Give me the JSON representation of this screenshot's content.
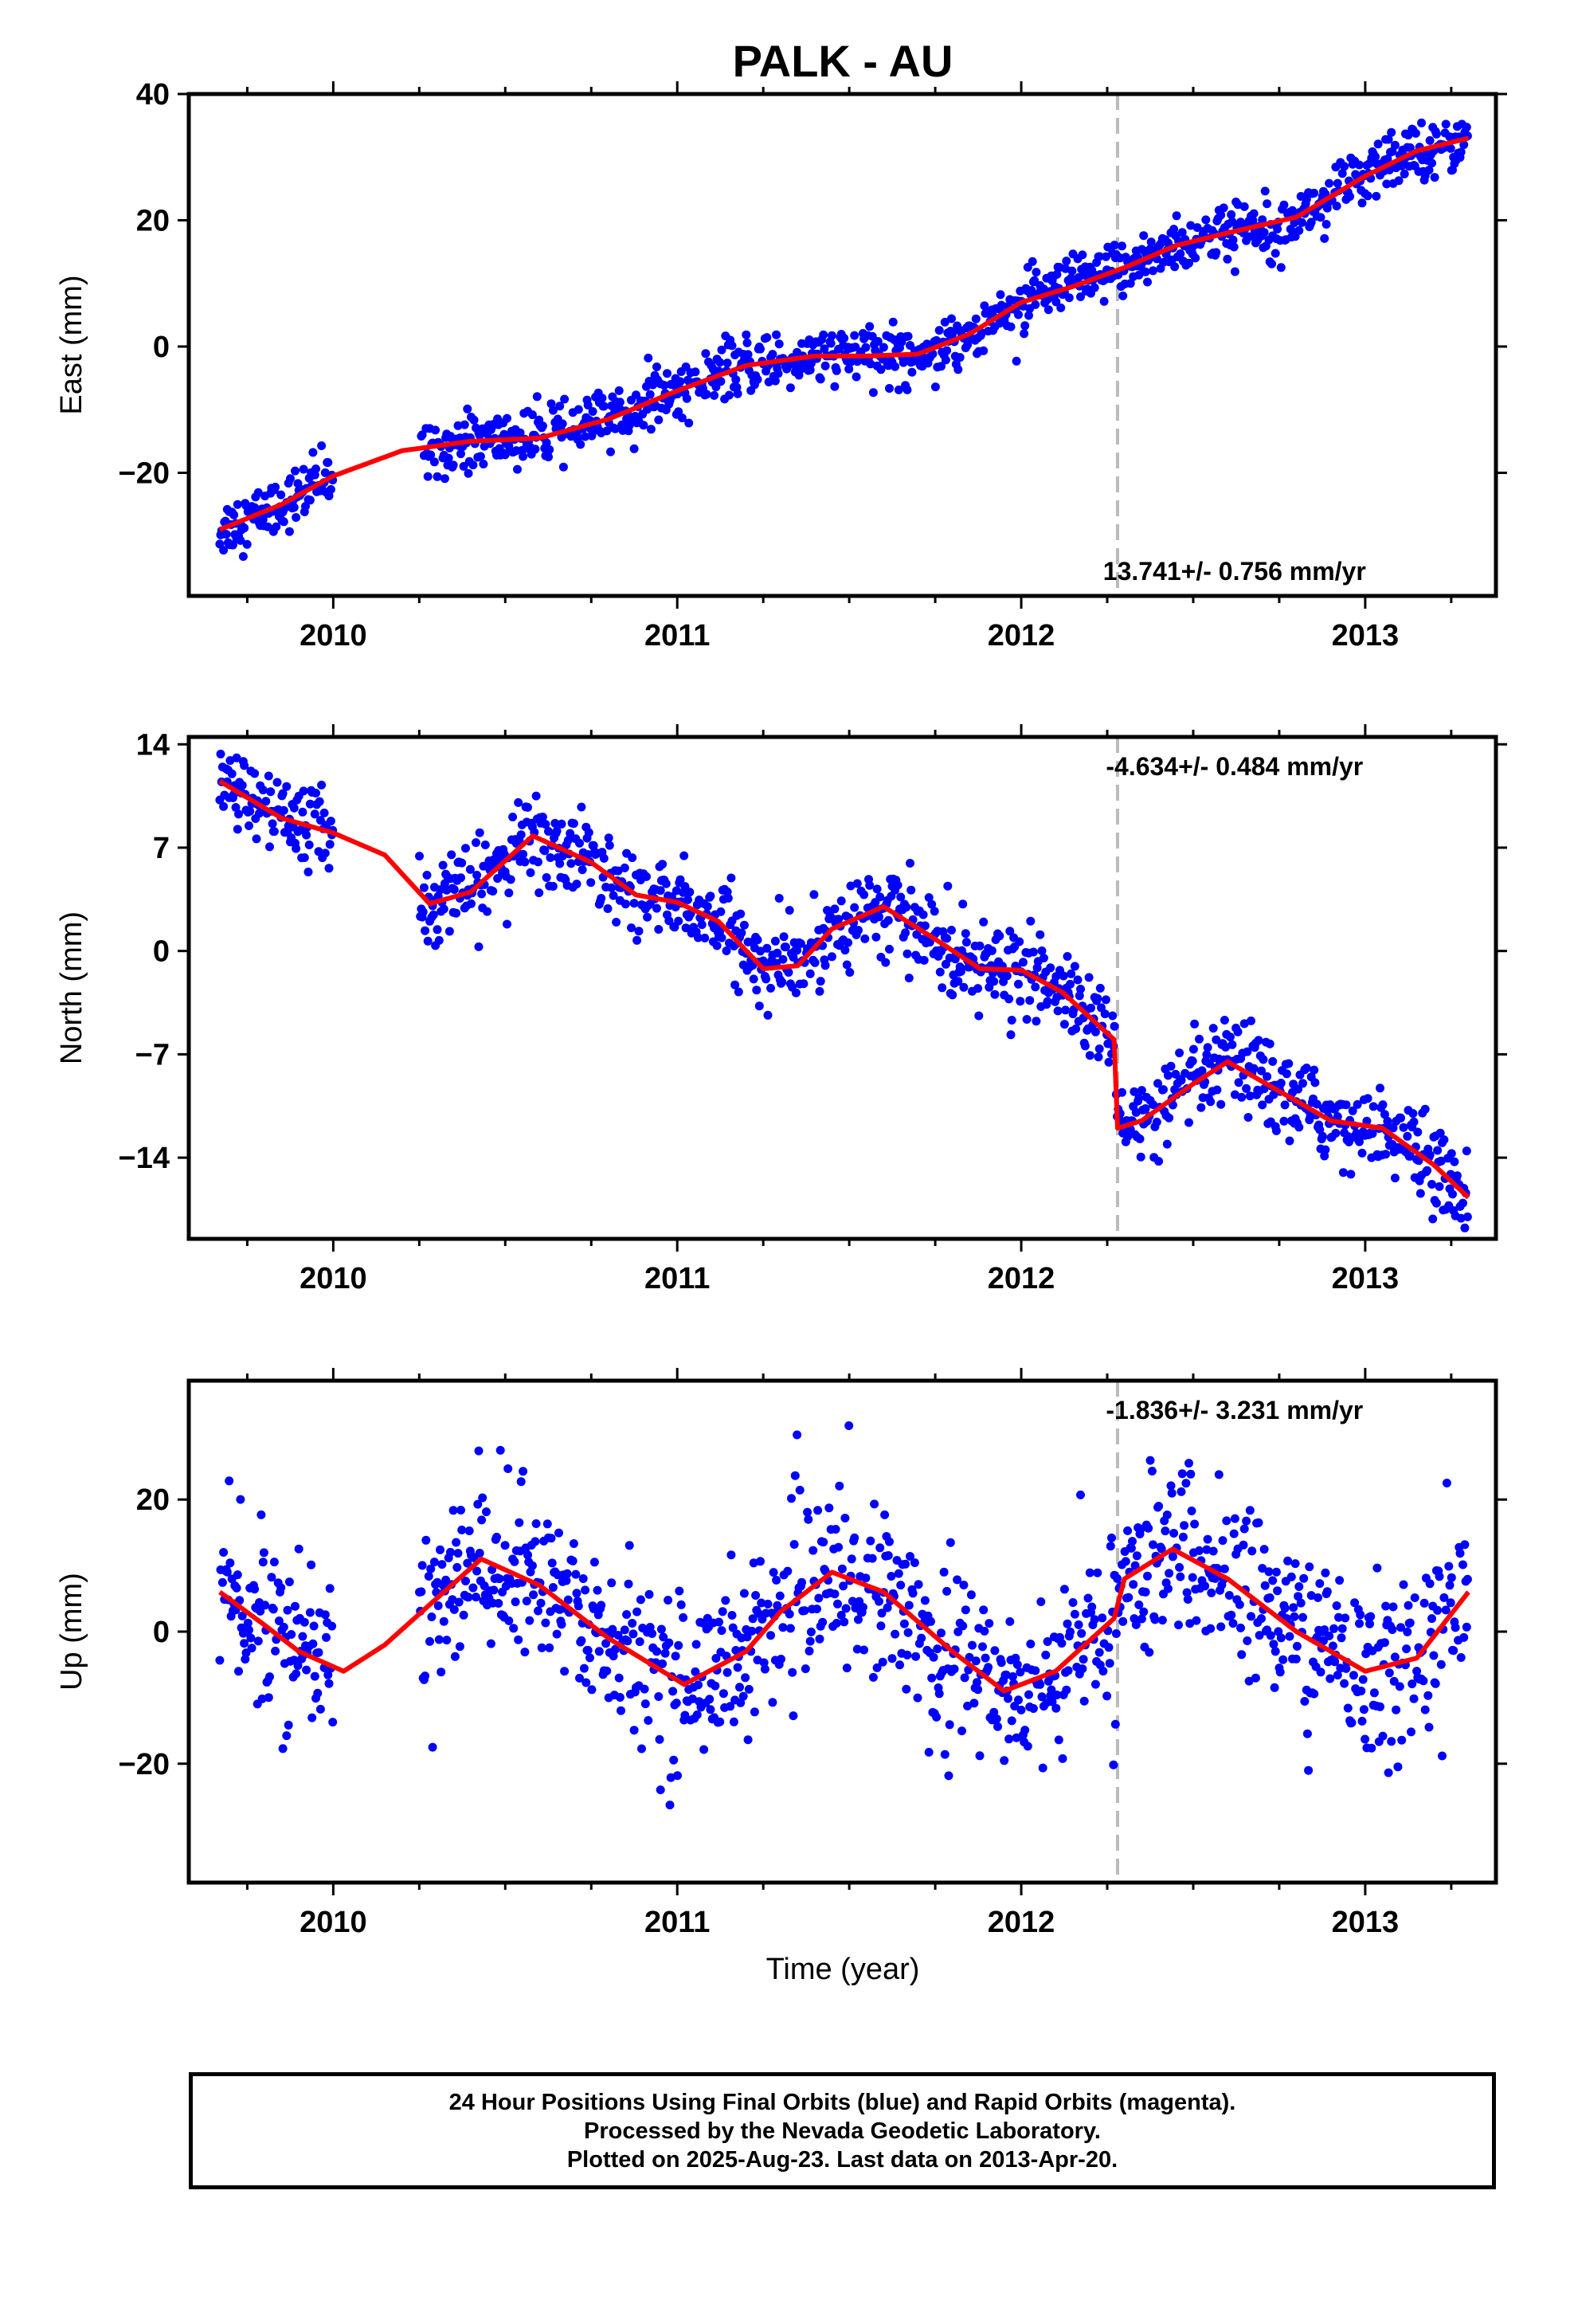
{
  "title": "PALK - AU",
  "xlabel": "Time (year)",
  "colors": {
    "final_orbits": "#0000ff",
    "fit": "#ff0000",
    "event_line": "#bbbbbb",
    "axes": "#000000"
  },
  "footer": {
    "line1": "24 Hour Positions Using Final Orbits (blue) and Rapid Orbits (magenta).",
    "line2": "Processed by the Nevada Geodetic Laboratory.",
    "line3": "Plotted on 2025-Aug-23. Last data on 2013-Apr-20."
  },
  "chart_data": [
    {
      "type": "scatter",
      "ylabel": "East (mm)",
      "rate_label": "13.741+/- 0.756 mm/yr",
      "rate_position": "bottom-right",
      "xlim": [
        2009.58,
        2013.38
      ],
      "ylim": [
        -39.5,
        40
      ],
      "xticks": [
        2010,
        2011,
        2012,
        2013
      ],
      "yticks": [
        -20,
        0,
        20,
        40
      ],
      "event_year": 2012.28,
      "data_span": [
        2009.67,
        2013.3
      ],
      "gap": [
        2010.0,
        2010.25
      ],
      "trend": [
        [
          2009.67,
          -29
        ],
        [
          2009.85,
          -25
        ],
        [
          2010.0,
          -20.5
        ],
        [
          2010.2,
          -16.5
        ],
        [
          2010.4,
          -15
        ],
        [
          2010.6,
          -14.5
        ],
        [
          2010.8,
          -11.5
        ],
        [
          2011.0,
          -7
        ],
        [
          2011.2,
          -3
        ],
        [
          2011.4,
          -1.5
        ],
        [
          2011.55,
          -1.5
        ],
        [
          2011.7,
          -1.2
        ],
        [
          2011.85,
          2
        ],
        [
          2012.0,
          7
        ],
        [
          2012.15,
          9.5
        ],
        [
          2012.3,
          12.5
        ],
        [
          2012.45,
          16
        ],
        [
          2012.6,
          18
        ],
        [
          2012.8,
          20.5
        ],
        [
          2013.0,
          27
        ],
        [
          2013.15,
          31
        ],
        [
          2013.3,
          33
        ]
      ],
      "scatter_sd": 2.2,
      "fit_color": "#ff0000",
      "point_color": "#0000ff"
    },
    {
      "type": "scatter",
      "ylabel": "North (mm)",
      "rate_label": "-4.634+/- 0.484 mm/yr",
      "rate_position": "top-right",
      "xlim": [
        2009.58,
        2013.38
      ],
      "ylim": [
        -19.5,
        14.5
      ],
      "xticks": [
        2010,
        2011,
        2012,
        2013
      ],
      "yticks": [
        -14,
        -7,
        0,
        7,
        14
      ],
      "event_year": 2012.28,
      "data_span": [
        2009.67,
        2013.3
      ],
      "gap": [
        2010.0,
        2010.25
      ],
      "trend": [
        [
          2009.67,
          11.5
        ],
        [
          2009.85,
          9
        ],
        [
          2010.0,
          8
        ],
        [
          2010.15,
          6.5
        ],
        [
          2010.28,
          3.2
        ],
        [
          2010.4,
          4
        ],
        [
          2010.58,
          7.8
        ],
        [
          2010.75,
          6
        ],
        [
          2010.88,
          3.8
        ],
        [
          2011.0,
          3.3
        ],
        [
          2011.12,
          2
        ],
        [
          2011.25,
          -1.2
        ],
        [
          2011.35,
          -1
        ],
        [
          2011.45,
          1.5
        ],
        [
          2011.6,
          3
        ],
        [
          2011.75,
          0.8
        ],
        [
          2011.88,
          -1.2
        ],
        [
          2012.0,
          -1.3
        ],
        [
          2012.12,
          -2.8
        ],
        [
          2012.27,
          -6
        ],
        [
          2012.28,
          -12
        ],
        [
          2012.35,
          -11.5
        ],
        [
          2012.5,
          -9
        ],
        [
          2012.6,
          -7.5
        ],
        [
          2012.75,
          -9.5
        ],
        [
          2012.9,
          -11.5
        ],
        [
          2013.05,
          -12
        ],
        [
          2013.2,
          -14.5
        ],
        [
          2013.3,
          -16.7
        ]
      ],
      "scatter_sd": 1.4,
      "fit_color": "#ff0000",
      "point_color": "#0000ff"
    },
    {
      "type": "scatter",
      "ylabel": "Up (mm)",
      "rate_label": "-1.836+/- 3.231 mm/yr",
      "rate_position": "top-right",
      "xlim": [
        2009.58,
        2013.38
      ],
      "ylim": [
        -38,
        38
      ],
      "xticks": [
        2010,
        2011,
        2012,
        2013
      ],
      "yticks": [
        -20,
        0,
        20
      ],
      "event_year": 2012.28,
      "data_span": [
        2009.67,
        2013.3
      ],
      "gap": [
        2010.0,
        2010.25
      ],
      "trend": [
        [
          2009.67,
          6
        ],
        [
          2009.8,
          1
        ],
        [
          2009.9,
          -3
        ],
        [
          2010.03,
          -6
        ],
        [
          2010.15,
          -2
        ],
        [
          2010.3,
          5
        ],
        [
          2010.43,
          11
        ],
        [
          2010.6,
          7
        ],
        [
          2010.8,
          -1
        ],
        [
          2011.02,
          -8
        ],
        [
          2011.2,
          -3
        ],
        [
          2011.3,
          3
        ],
        [
          2011.45,
          9
        ],
        [
          2011.6,
          6
        ],
        [
          2011.8,
          -3
        ],
        [
          2011.95,
          -9
        ],
        [
          2012.1,
          -6
        ],
        [
          2012.27,
          2
        ],
        [
          2012.3,
          8
        ],
        [
          2012.44,
          12.5
        ],
        [
          2012.6,
          8
        ],
        [
          2012.8,
          0
        ],
        [
          2013.0,
          -6
        ],
        [
          2013.15,
          -4
        ],
        [
          2013.3,
          6
        ]
      ],
      "scatter_sd": 6.5,
      "fit_color": "#ff0000",
      "point_color": "#0000ff"
    }
  ]
}
